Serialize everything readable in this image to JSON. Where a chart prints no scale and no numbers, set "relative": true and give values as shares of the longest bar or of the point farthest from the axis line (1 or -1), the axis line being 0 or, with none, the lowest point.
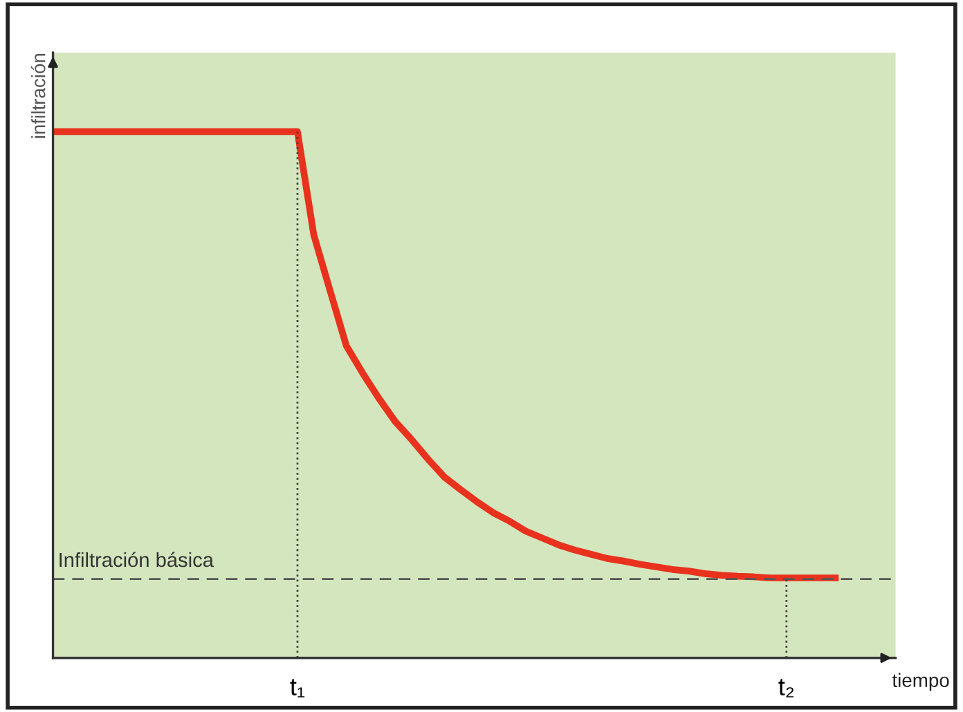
{
  "chart_data": {
    "type": "line",
    "relative": true,
    "xlabel": "tiempo",
    "ylabel": "infiltración",
    "categories": [
      null,
      null,
      null,
      null,
      null,
      null,
      null,
      null,
      null,
      null,
      null,
      null,
      null,
      null,
      null,
      "t₁",
      null,
      null,
      null,
      null,
      null,
      null,
      null,
      null,
      null,
      null,
      null,
      null,
      null,
      null,
      null,
      null,
      null,
      null,
      null,
      null,
      null,
      null,
      null,
      null,
      null,
      null,
      null,
      null,
      null,
      "t₂",
      null,
      null,
      null
    ],
    "tick_labels": "x",
    "grid": false,
    "legend": false,
    "series": [
      {
        "color": "#e8321e",
        "line_style": "solid",
        "marker": "none",
        "values": [
          1,
          1,
          1,
          1,
          1,
          1,
          1,
          1,
          1,
          1,
          1,
          1,
          1,
          1,
          1,
          1,
          0.804,
          0.698,
          0.593,
          0.541,
          0.493,
          0.449,
          0.415,
          0.378,
          0.344,
          0.32,
          0.297,
          0.276,
          0.26,
          0.241,
          0.228,
          0.215,
          0.205,
          0.197,
          0.189,
          0.184,
          0.178,
          0.173,
          0.168,
          0.165,
          0.16,
          0.157,
          0.155,
          0.154,
          0.152,
          0.152,
          0.152,
          0.152,
          0.152
        ]
      }
    ],
    "ref_lines": [
      {
        "axis": "y",
        "value": 0.15,
        "label": "Infiltración básica",
        "color": "#555555",
        "line_style": "dashed"
      },
      {
        "axis": "x",
        "value": "t₁",
        "color": "#444444",
        "line_style": "dotted"
      },
      {
        "axis": "x",
        "value": "t₂",
        "color": "#444444",
        "line_style": "dotted"
      }
    ]
  }
}
